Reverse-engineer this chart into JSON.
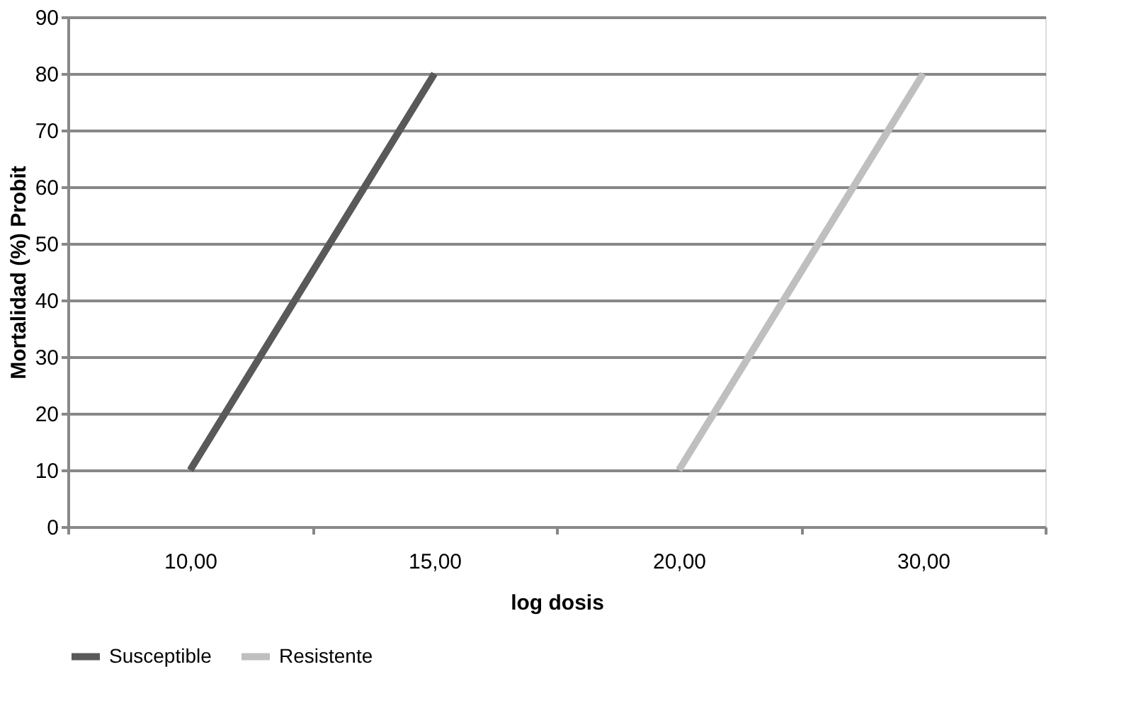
{
  "chart_data": {
    "type": "line",
    "xlabel": "log dosis",
    "ylabel": "Mortalidad (%) Probit",
    "categories": [
      "10,00",
      "15,00",
      "20,00",
      "30,00"
    ],
    "series": [
      {
        "name": "Susceptible",
        "color": "#595959",
        "values": [
          10,
          80,
          null,
          null
        ]
      },
      {
        "name": "Resistente",
        "color": "#bfbfbf",
        "values": [
          null,
          null,
          10,
          80
        ]
      }
    ],
    "ylim": [
      0,
      90
    ],
    "yticks": [
      0,
      10,
      20,
      30,
      40,
      50,
      60,
      70,
      80,
      90
    ],
    "grid": "y",
    "legend": "bottom",
    "marker": "none",
    "line_style": "solid"
  }
}
